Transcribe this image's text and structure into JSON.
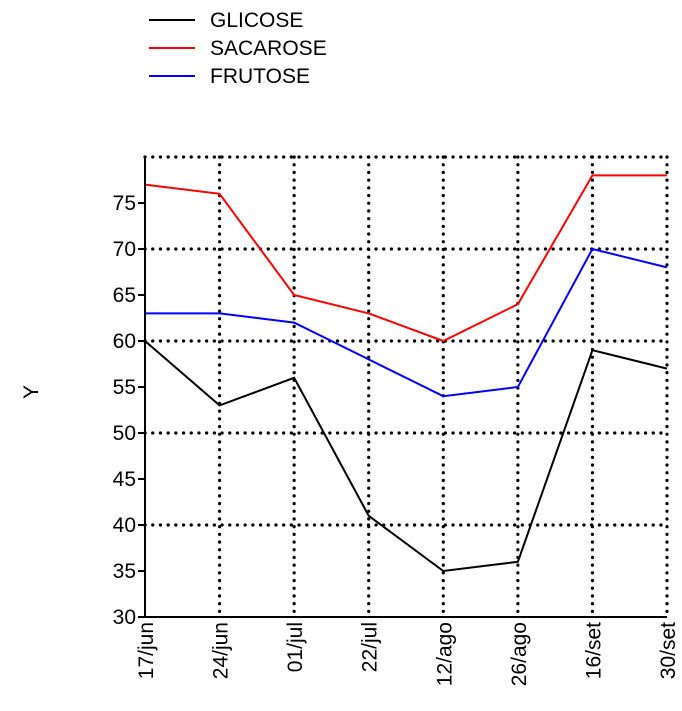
{
  "chart_data": {
    "type": "line",
    "categories": [
      "17/jun",
      "24/jun",
      "01/jul",
      "22/jul",
      "12/ago",
      "26/ago",
      "16/set",
      "30/set"
    ],
    "series": [
      {
        "name": "GLICOSE",
        "color": "#000000",
        "values": [
          60,
          53,
          56,
          41,
          35,
          36,
          59,
          57
        ]
      },
      {
        "name": "SACAROSE",
        "color": "#ff0000",
        "values": [
          77,
          76,
          65,
          63,
          60,
          64,
          78,
          78
        ]
      },
      {
        "name": "FRUTOSE",
        "color": "#0000ff",
        "values": [
          63,
          63,
          62,
          58,
          54,
          55,
          70,
          68
        ]
      }
    ],
    "ylabel": "Y",
    "xlabel": "",
    "ylim": [
      30,
      80
    ],
    "yticks": [
      30,
      35,
      40,
      45,
      50,
      55,
      60,
      65,
      70,
      75
    ],
    "grid": {
      "vertical": true,
      "horizontal_values": [
        40,
        50,
        60,
        70,
        80
      ],
      "style": "dotted"
    },
    "legend": {
      "placement": "top-center"
    }
  }
}
